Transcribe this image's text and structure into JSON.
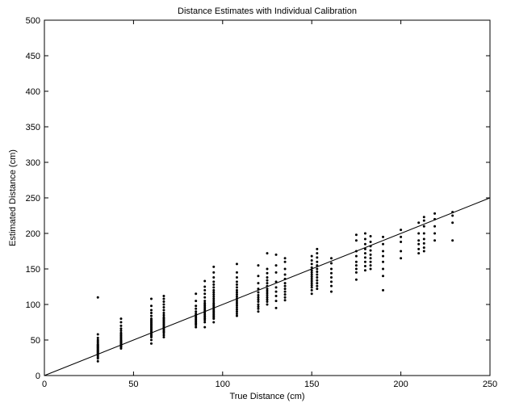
{
  "chart_data": {
    "type": "scatter",
    "title": "Distance Estimates with Individual Calibration",
    "xlabel": "True Distance (cm)",
    "ylabel": "Estimated Distance (cm)",
    "xlim": [
      0,
      250
    ],
    "ylim": [
      0,
      500
    ],
    "xticks": [
      0,
      50,
      100,
      150,
      200,
      250
    ],
    "yticks": [
      0,
      50,
      100,
      150,
      200,
      250,
      300,
      350,
      400,
      450,
      500
    ],
    "grid": false,
    "legend": "none",
    "marker_color": "#000000",
    "series": [
      {
        "points": [
          [
            30,
            110
          ],
          [
            30,
            58
          ],
          [
            30,
            53
          ],
          [
            30,
            50
          ],
          [
            30,
            48
          ],
          [
            30,
            46
          ],
          [
            30,
            44
          ],
          [
            30,
            43
          ],
          [
            30,
            42
          ],
          [
            30,
            41
          ],
          [
            30,
            40
          ],
          [
            30,
            39
          ],
          [
            30,
            38
          ],
          [
            30,
            37
          ],
          [
            30,
            36
          ],
          [
            30,
            35
          ],
          [
            30,
            34
          ],
          [
            30,
            33
          ],
          [
            30,
            32
          ],
          [
            30,
            31
          ],
          [
            30,
            30
          ],
          [
            30,
            28
          ],
          [
            30,
            26
          ],
          [
            30,
            24
          ],
          [
            30,
            20
          ],
          [
            43,
            80
          ],
          [
            43,
            75
          ],
          [
            43,
            70
          ],
          [
            43,
            66
          ],
          [
            43,
            63
          ],
          [
            43,
            60
          ],
          [
            43,
            58
          ],
          [
            43,
            56
          ],
          [
            43,
            54
          ],
          [
            43,
            52
          ],
          [
            43,
            50
          ],
          [
            43,
            49
          ],
          [
            43,
            48
          ],
          [
            43,
            47
          ],
          [
            43,
            46
          ],
          [
            43,
            45
          ],
          [
            43,
            44
          ],
          [
            43,
            43
          ],
          [
            43,
            42
          ],
          [
            43,
            41
          ],
          [
            43,
            40
          ],
          [
            43,
            38
          ],
          [
            60,
            108
          ],
          [
            60,
            98
          ],
          [
            60,
            92
          ],
          [
            60,
            88
          ],
          [
            60,
            84
          ],
          [
            60,
            80
          ],
          [
            60,
            78
          ],
          [
            60,
            76
          ],
          [
            60,
            74
          ],
          [
            60,
            72
          ],
          [
            60,
            70
          ],
          [
            60,
            68
          ],
          [
            60,
            66
          ],
          [
            60,
            64
          ],
          [
            60,
            62
          ],
          [
            60,
            60
          ],
          [
            60,
            58
          ],
          [
            60,
            56
          ],
          [
            60,
            54
          ],
          [
            60,
            50
          ],
          [
            60,
            45
          ],
          [
            67,
            112
          ],
          [
            67,
            108
          ],
          [
            67,
            104
          ],
          [
            67,
            100
          ],
          [
            67,
            96
          ],
          [
            67,
            92
          ],
          [
            67,
            88
          ],
          [
            67,
            85
          ],
          [
            67,
            82
          ],
          [
            67,
            80
          ],
          [
            67,
            78
          ],
          [
            67,
            76
          ],
          [
            67,
            74
          ],
          [
            67,
            72
          ],
          [
            67,
            70
          ],
          [
            67,
            68
          ],
          [
            67,
            66
          ],
          [
            67,
            64
          ],
          [
            67,
            62
          ],
          [
            67,
            60
          ],
          [
            67,
            57
          ],
          [
            67,
            54
          ],
          [
            85,
            115
          ],
          [
            85,
            105
          ],
          [
            85,
            98
          ],
          [
            85,
            94
          ],
          [
            85,
            90
          ],
          [
            85,
            87
          ],
          [
            85,
            85
          ],
          [
            85,
            83
          ],
          [
            85,
            81
          ],
          [
            85,
            79
          ],
          [
            85,
            77
          ],
          [
            85,
            75
          ],
          [
            85,
            73
          ],
          [
            85,
            71
          ],
          [
            85,
            68
          ],
          [
            90,
            133
          ],
          [
            90,
            125
          ],
          [
            90,
            120
          ],
          [
            90,
            115
          ],
          [
            90,
            110
          ],
          [
            90,
            105
          ],
          [
            90,
            102
          ],
          [
            90,
            100
          ],
          [
            90,
            98
          ],
          [
            90,
            96
          ],
          [
            90,
            94
          ],
          [
            90,
            92
          ],
          [
            90,
            90
          ],
          [
            90,
            88
          ],
          [
            90,
            86
          ],
          [
            90,
            84
          ],
          [
            90,
            82
          ],
          [
            90,
            80
          ],
          [
            90,
            78
          ],
          [
            90,
            75
          ],
          [
            90,
            68
          ],
          [
            95,
            153
          ],
          [
            95,
            145
          ],
          [
            95,
            138
          ],
          [
            95,
            132
          ],
          [
            95,
            128
          ],
          [
            95,
            124
          ],
          [
            95,
            120
          ],
          [
            95,
            117
          ],
          [
            95,
            114
          ],
          [
            95,
            111
          ],
          [
            95,
            108
          ],
          [
            95,
            105
          ],
          [
            95,
            102
          ],
          [
            95,
            100
          ],
          [
            95,
            98
          ],
          [
            95,
            96
          ],
          [
            95,
            94
          ],
          [
            95,
            92
          ],
          [
            95,
            90
          ],
          [
            95,
            88
          ],
          [
            95,
            86
          ],
          [
            95,
            84
          ],
          [
            95,
            82
          ],
          [
            95,
            80
          ],
          [
            95,
            75
          ],
          [
            108,
            157
          ],
          [
            108,
            145
          ],
          [
            108,
            138
          ],
          [
            108,
            132
          ],
          [
            108,
            128
          ],
          [
            108,
            124
          ],
          [
            108,
            120
          ],
          [
            108,
            117
          ],
          [
            108,
            114
          ],
          [
            108,
            111
          ],
          [
            108,
            108
          ],
          [
            108,
            105
          ],
          [
            108,
            102
          ],
          [
            108,
            99
          ],
          [
            108,
            96
          ],
          [
            108,
            93
          ],
          [
            108,
            90
          ],
          [
            108,
            87
          ],
          [
            108,
            84
          ],
          [
            120,
            155
          ],
          [
            120,
            140
          ],
          [
            120,
            130
          ],
          [
            120,
            122
          ],
          [
            120,
            117
          ],
          [
            120,
            113
          ],
          [
            120,
            110
          ],
          [
            120,
            107
          ],
          [
            120,
            104
          ],
          [
            120,
            100
          ],
          [
            120,
            97
          ],
          [
            120,
            94
          ],
          [
            120,
            90
          ],
          [
            125,
            172
          ],
          [
            125,
            150
          ],
          [
            125,
            144
          ],
          [
            125,
            138
          ],
          [
            125,
            134
          ],
          [
            125,
            130
          ],
          [
            125,
            126
          ],
          [
            125,
            122
          ],
          [
            125,
            119
          ],
          [
            125,
            116
          ],
          [
            125,
            113
          ],
          [
            125,
            110
          ],
          [
            125,
            107
          ],
          [
            125,
            104
          ],
          [
            125,
            100
          ],
          [
            130,
            170
          ],
          [
            130,
            155
          ],
          [
            130,
            145
          ],
          [
            130,
            132
          ],
          [
            130,
            124
          ],
          [
            130,
            118
          ],
          [
            130,
            112
          ],
          [
            130,
            105
          ],
          [
            130,
            95
          ],
          [
            135,
            165
          ],
          [
            135,
            160
          ],
          [
            135,
            150
          ],
          [
            135,
            142
          ],
          [
            135,
            136
          ],
          [
            135,
            130
          ],
          [
            135,
            126
          ],
          [
            135,
            122
          ],
          [
            135,
            118
          ],
          [
            135,
            114
          ],
          [
            135,
            110
          ],
          [
            135,
            106
          ],
          [
            150,
            168
          ],
          [
            150,
            162
          ],
          [
            150,
            157
          ],
          [
            150,
            152
          ],
          [
            150,
            148
          ],
          [
            150,
            145
          ],
          [
            150,
            142
          ],
          [
            150,
            139
          ],
          [
            150,
            136
          ],
          [
            150,
            133
          ],
          [
            150,
            130
          ],
          [
            150,
            127
          ],
          [
            150,
            124
          ],
          [
            150,
            120
          ],
          [
            150,
            115
          ],
          [
            153,
            178
          ],
          [
            153,
            172
          ],
          [
            153,
            166
          ],
          [
            153,
            160
          ],
          [
            153,
            155
          ],
          [
            153,
            150
          ],
          [
            153,
            146
          ],
          [
            153,
            142
          ],
          [
            153,
            138
          ],
          [
            153,
            134
          ],
          [
            153,
            130
          ],
          [
            153,
            126
          ],
          [
            153,
            122
          ],
          [
            161,
            165
          ],
          [
            161,
            158
          ],
          [
            161,
            150
          ],
          [
            161,
            144
          ],
          [
            161,
            138
          ],
          [
            161,
            132
          ],
          [
            161,
            126
          ],
          [
            161,
            118
          ],
          [
            175,
            198
          ],
          [
            175,
            190
          ],
          [
            175,
            175
          ],
          [
            175,
            168
          ],
          [
            175,
            160
          ],
          [
            175,
            155
          ],
          [
            175,
            150
          ],
          [
            175,
            145
          ],
          [
            175,
            135
          ],
          [
            180,
            200
          ],
          [
            180,
            192
          ],
          [
            180,
            185
          ],
          [
            180,
            178
          ],
          [
            180,
            172
          ],
          [
            180,
            166
          ],
          [
            180,
            160
          ],
          [
            180,
            154
          ],
          [
            180,
            148
          ],
          [
            183,
            196
          ],
          [
            183,
            188
          ],
          [
            183,
            182
          ],
          [
            183,
            176
          ],
          [
            183,
            170
          ],
          [
            183,
            165
          ],
          [
            183,
            160
          ],
          [
            183,
            155
          ],
          [
            183,
            150
          ],
          [
            190,
            195
          ],
          [
            190,
            185
          ],
          [
            190,
            175
          ],
          [
            190,
            168
          ],
          [
            190,
            160
          ],
          [
            190,
            150
          ],
          [
            190,
            140
          ],
          [
            190,
            120
          ],
          [
            200,
            205
          ],
          [
            200,
            195
          ],
          [
            200,
            188
          ],
          [
            200,
            175
          ],
          [
            200,
            165
          ],
          [
            210,
            215
          ],
          [
            210,
            200
          ],
          [
            210,
            190
          ],
          [
            210,
            185
          ],
          [
            210,
            178
          ],
          [
            210,
            172
          ],
          [
            213,
            223
          ],
          [
            213,
            218
          ],
          [
            213,
            210
          ],
          [
            213,
            200
          ],
          [
            213,
            192
          ],
          [
            213,
            186
          ],
          [
            213,
            180
          ],
          [
            213,
            175
          ],
          [
            219,
            228
          ],
          [
            219,
            220
          ],
          [
            219,
            210
          ],
          [
            219,
            200
          ],
          [
            219,
            190
          ],
          [
            229,
            230
          ],
          [
            229,
            225
          ],
          [
            229,
            215
          ],
          [
            229,
            190
          ]
        ]
      }
    ],
    "reference_line": {
      "style": "solid",
      "from": [
        0,
        0
      ],
      "to": [
        250,
        250
      ]
    }
  }
}
